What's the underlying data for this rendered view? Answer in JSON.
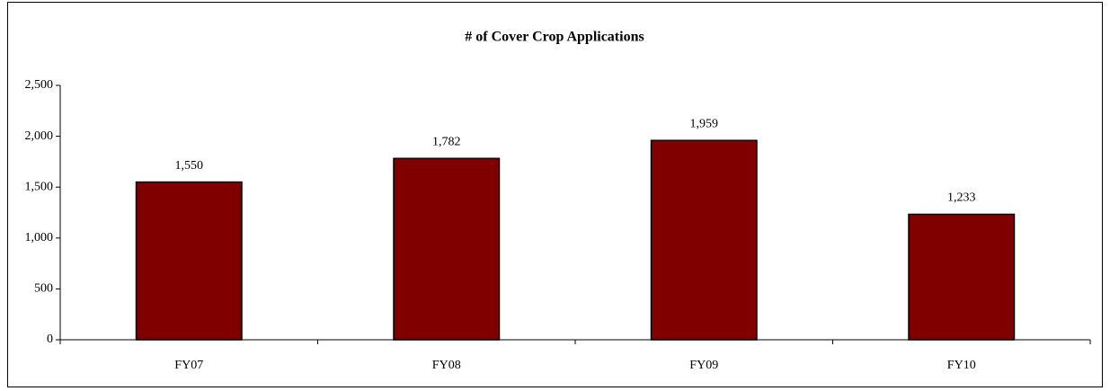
{
  "chart_data": {
    "type": "bar",
    "title": "# of Cover Crop Applications",
    "categories": [
      "FY07",
      "FY08",
      "FY09",
      "FY10"
    ],
    "values": [
      1550,
      1782,
      1959,
      1233
    ],
    "value_labels": [
      "1,550",
      "1,782",
      "1,959",
      "1,233"
    ],
    "color": "#800000",
    "ylim": [
      0,
      2500
    ],
    "yticks": [
      0,
      500,
      {
        "value": 1000,
        "label": "1,000"
      },
      {
        "value": 1500,
        "label": "1,500"
      },
      {
        "value": 2000,
        "label": "2,000"
      },
      {
        "value": 2500,
        "label": "2,500"
      }
    ],
    "grid": false
  }
}
